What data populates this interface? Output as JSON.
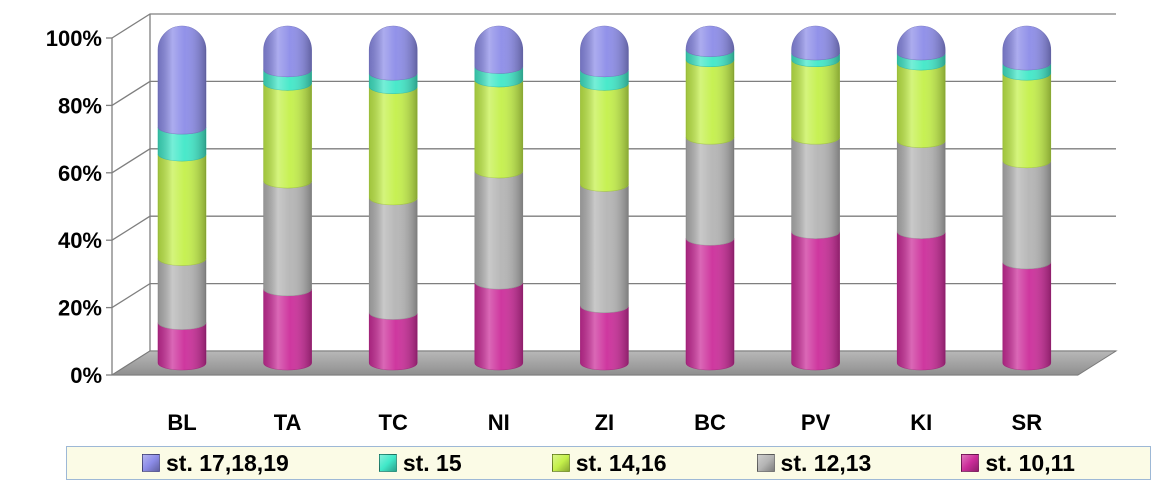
{
  "chart_data": {
    "type": "bar",
    "stacked": "percent",
    "categories": [
      "BL",
      "TA",
      "TC",
      "NI",
      "ZI",
      "BC",
      "PV",
      "KI",
      "SR"
    ],
    "series": [
      {
        "name": "st. 10,11",
        "color": "#cc2d9a",
        "values": [
          12,
          22,
          15,
          24,
          17,
          37,
          39,
          39,
          30
        ]
      },
      {
        "name": "st. 12,13",
        "color": "#b4b4b4",
        "values": [
          19,
          32,
          34,
          33,
          36,
          30,
          28,
          27,
          30
        ]
      },
      {
        "name": "st. 14,16",
        "color": "#c4f04a",
        "values": [
          31,
          29,
          33,
          27,
          30,
          23,
          23,
          23,
          26
        ]
      },
      {
        "name": "st. 15",
        "color": "#40e8c8",
        "values": [
          8,
          4,
          4,
          4,
          4,
          3,
          2,
          3,
          3
        ]
      },
      {
        "name": "st. 17,18,19",
        "color": "#8c8ce8",
        "values": [
          30,
          13,
          14,
          12,
          13,
          7,
          8,
          8,
          11
        ]
      }
    ],
    "y_ticks": [
      "0%",
      "20%",
      "40%",
      "60%",
      "80%",
      "100%"
    ],
    "ylim": [
      0,
      100
    ],
    "grid": true,
    "legend": {
      "position": "bottom",
      "order": [
        "st. 17,18,19",
        "st. 15",
        "st. 14,16",
        "st. 12,13",
        "st. 10,11"
      ]
    }
  }
}
